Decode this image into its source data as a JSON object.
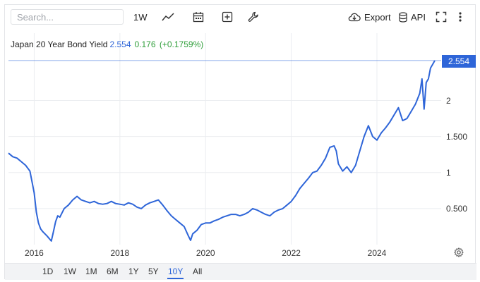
{
  "toolbar": {
    "search_placeholder": "Search...",
    "interval_label": "1W",
    "export_label": "Export",
    "api_label": "API",
    "icons": [
      "line-chart-icon",
      "calendar-icon",
      "plus-box-icon",
      "wrench-icon",
      "cloud-download-icon",
      "database-icon",
      "fullscreen-icon",
      "more-vertical-icon"
    ]
  },
  "legend": {
    "name": "Japan 20 Year Bond Yield",
    "value": "2.554",
    "change": "0.176",
    "change_pct": "(+0.1759%)",
    "value_color": "#2e65d8",
    "change_color": "#2f9e3a"
  },
  "last_price_tag": "2.554",
  "y_ticks": [
    "2",
    "1.500",
    "1",
    "0.500"
  ],
  "x_ticks": [
    "2016",
    "2018",
    "2020",
    "2022",
    "2024"
  ],
  "ranges": {
    "items": [
      "1D",
      "1W",
      "1M",
      "6M",
      "1Y",
      "5Y",
      "10Y",
      "All"
    ],
    "active": "10Y"
  },
  "chart_data": {
    "type": "line",
    "series": [
      {
        "name": "Japan 20 Year Bond Yield",
        "color": "#2e65d8",
        "x": [
          2015.4,
          2015.5,
          2015.6,
          2015.7,
          2015.8,
          2015.9,
          2016.0,
          2016.05,
          2016.1,
          2016.15,
          2016.2,
          2016.3,
          2016.4,
          2016.45,
          2016.5,
          2016.55,
          2016.6,
          2016.7,
          2016.8,
          2016.9,
          2017.0,
          2017.1,
          2017.2,
          2017.3,
          2017.4,
          2017.5,
          2017.6,
          2017.7,
          2017.8,
          2017.9,
          2018.0,
          2018.1,
          2018.2,
          2018.3,
          2018.4,
          2018.5,
          2018.6,
          2018.7,
          2018.8,
          2018.9,
          2019.0,
          2019.1,
          2019.2,
          2019.3,
          2019.4,
          2019.5,
          2019.6,
          2019.65,
          2019.7,
          2019.8,
          2019.9,
          2020.0,
          2020.1,
          2020.2,
          2020.3,
          2020.4,
          2020.5,
          2020.6,
          2020.7,
          2020.8,
          2020.9,
          2021.0,
          2021.1,
          2021.2,
          2021.3,
          2021.4,
          2021.5,
          2021.6,
          2021.7,
          2021.8,
          2021.9,
          2022.0,
          2022.1,
          2022.2,
          2022.3,
          2022.4,
          2022.5,
          2022.6,
          2022.7,
          2022.8,
          2022.9,
          2023.0,
          2023.05,
          2023.1,
          2023.2,
          2023.3,
          2023.4,
          2023.5,
          2023.6,
          2023.7,
          2023.8,
          2023.9,
          2024.0,
          2024.1,
          2024.2,
          2024.3,
          2024.4,
          2024.5,
          2024.6,
          2024.7,
          2024.8,
          2024.9,
          2025.0,
          2025.05,
          2025.1,
          2025.15,
          2025.2,
          2025.25,
          2025.3,
          2025.35
        ],
        "values": [
          1.27,
          1.22,
          1.2,
          1.15,
          1.1,
          1.02,
          0.72,
          0.45,
          0.3,
          0.22,
          0.18,
          0.12,
          0.05,
          0.18,
          0.32,
          0.4,
          0.38,
          0.5,
          0.55,
          0.62,
          0.67,
          0.62,
          0.6,
          0.58,
          0.6,
          0.57,
          0.56,
          0.57,
          0.6,
          0.57,
          0.56,
          0.55,
          0.58,
          0.56,
          0.52,
          0.5,
          0.55,
          0.58,
          0.6,
          0.62,
          0.55,
          0.47,
          0.4,
          0.35,
          0.3,
          0.25,
          0.12,
          0.06,
          0.15,
          0.2,
          0.28,
          0.3,
          0.3,
          0.33,
          0.35,
          0.38,
          0.4,
          0.42,
          0.42,
          0.4,
          0.42,
          0.45,
          0.5,
          0.48,
          0.45,
          0.42,
          0.4,
          0.45,
          0.48,
          0.5,
          0.55,
          0.6,
          0.68,
          0.78,
          0.85,
          0.92,
          1.0,
          1.02,
          1.1,
          1.2,
          1.35,
          1.37,
          1.3,
          1.12,
          1.02,
          1.08,
          1.0,
          1.1,
          1.3,
          1.5,
          1.65,
          1.5,
          1.45,
          1.55,
          1.62,
          1.7,
          1.8,
          1.9,
          1.72,
          1.75,
          1.85,
          1.95,
          2.1,
          2.3,
          1.88,
          2.25,
          2.3,
          2.45,
          2.5,
          2.554
        ]
      }
    ],
    "title": "Japan 20 Year Bond Yield",
    "xlabel": "",
    "ylabel": "",
    "xlim": [
      2015.4,
      2025.4
    ],
    "ylim": [
      0.0,
      2.68
    ],
    "grid": true
  }
}
